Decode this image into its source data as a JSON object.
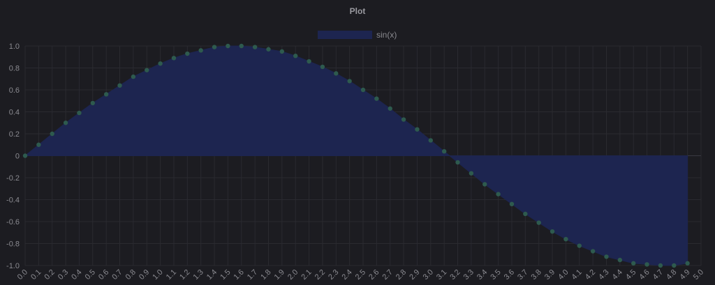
{
  "chart_data": {
    "type": "area",
    "title": "Plot",
    "xlabel": "",
    "ylabel": "",
    "series": [
      {
        "name": "sin(x)",
        "fill_color": "#1d2550",
        "line_color": "#1d2550",
        "point_color": "#2e5a4e",
        "x": [
          0.0,
          0.1,
          0.2,
          0.3,
          0.4,
          0.5,
          0.6,
          0.7,
          0.8,
          0.9,
          1.0,
          1.1,
          1.2,
          1.3,
          1.4,
          1.5,
          1.6,
          1.7,
          1.8,
          1.9,
          2.0,
          2.1,
          2.2,
          2.3,
          2.4,
          2.5,
          2.6,
          2.7,
          2.8,
          2.9,
          3.0,
          3.1,
          3.2,
          3.3,
          3.4,
          3.5,
          3.6,
          3.7,
          3.8,
          3.9,
          4.0,
          4.1,
          4.2,
          4.3,
          4.4,
          4.5,
          4.6,
          4.7,
          4.8,
          4.9
        ],
        "y": [
          0.0,
          0.1,
          0.2,
          0.3,
          0.39,
          0.48,
          0.56,
          0.64,
          0.72,
          0.78,
          0.84,
          0.89,
          0.93,
          0.96,
          0.99,
          1.0,
          1.0,
          0.99,
          0.97,
          0.95,
          0.91,
          0.86,
          0.81,
          0.75,
          0.68,
          0.6,
          0.52,
          0.43,
          0.33,
          0.24,
          0.14,
          0.04,
          -0.06,
          -0.16,
          -0.26,
          -0.35,
          -0.44,
          -0.53,
          -0.61,
          -0.69,
          -0.76,
          -0.82,
          -0.87,
          -0.92,
          -0.95,
          -0.98,
          -0.99,
          -1.0,
          -1.0,
          -0.98
        ]
      }
    ],
    "x_ticks": [
      "0.0",
      "0.1",
      "0.2",
      "0.3",
      "0.4",
      "0.5",
      "0.6",
      "0.7",
      "0.8",
      "0.9",
      "1.0",
      "1.1",
      "1.2",
      "1.3",
      "1.4",
      "1.5",
      "1.6",
      "1.7",
      "1.8",
      "1.9",
      "2.0",
      "2.1",
      "2.2",
      "2.3",
      "2.4",
      "2.5",
      "2.6",
      "2.7",
      "2.8",
      "2.9",
      "3.0",
      "3.1",
      "3.2",
      "3.3",
      "3.4",
      "3.5",
      "3.6",
      "3.7",
      "3.8",
      "3.9",
      "4.0",
      "4.1",
      "4.2",
      "4.3",
      "4.4",
      "4.5",
      "4.6",
      "4.7",
      "4.8",
      "4.9",
      "5.0"
    ],
    "y_ticks": [
      "1.0",
      "0.8",
      "0.6",
      "0.4",
      "0.2",
      "0",
      "-0.2",
      "-0.4",
      "-0.6",
      "-0.8",
      "-1.0"
    ],
    "xlim": [
      0.0,
      5.0
    ],
    "ylim": [
      -1.0,
      1.0
    ],
    "grid": true,
    "legend_position": "top-center"
  }
}
